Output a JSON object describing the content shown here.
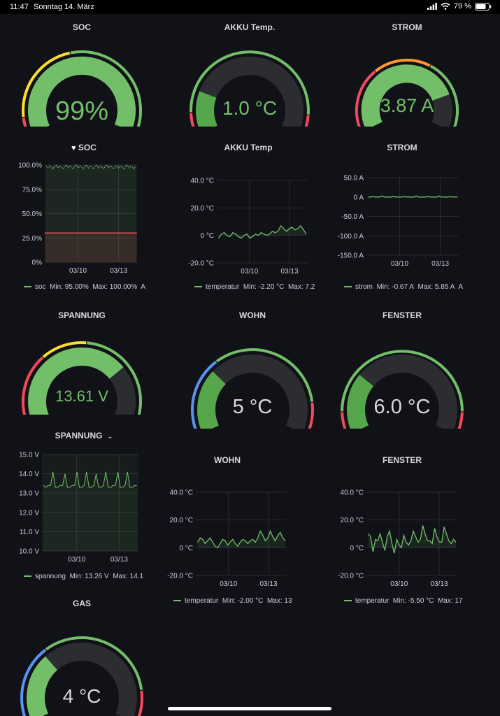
{
  "status_bar": {
    "time": "11:47",
    "date": "Sonntag 14. März",
    "battery": "79 %"
  },
  "colors": {
    "green": "#73bf69",
    "dark_green": "#56a64b",
    "yellow": "#fade2a",
    "orange": "#ff9830",
    "red": "#f2495c",
    "blue": "#5794f2",
    "track": "#2c2d31"
  },
  "gauges": {
    "soc": {
      "title": "SOC",
      "value": "99%",
      "level": 0.99
    },
    "akku": {
      "title": "AKKU Temp.",
      "value": "1.0 °C"
    },
    "strom": {
      "title": "STROM",
      "value": "3.87 A"
    },
    "spannung": {
      "title": "SPANNUNG",
      "value": "13.61 V"
    },
    "wohn": {
      "title": "WOHN",
      "value": "5 °C"
    },
    "fenster": {
      "title": "FENSTER",
      "value": "6.0 °C"
    },
    "gas": {
      "title": "GAS",
      "value": "4 °C"
    }
  },
  "graphs": {
    "soc": {
      "title": "SOC",
      "legend": {
        "series": "soc",
        "min": "Min: 95.00%",
        "max": "Max: 100.00%",
        "extra": "A"
      }
    },
    "akku": {
      "title": "AKKU Temp",
      "legend": {
        "series": "temperatur",
        "min": "Min: -2.20 °C",
        "max": "Max: 7.2"
      }
    },
    "strom": {
      "title": "STROM",
      "legend": {
        "series": "strom",
        "min": "Min: -0.67 A",
        "max": "Max: 5.85 A",
        "extra": "A"
      }
    },
    "spannung": {
      "title": "SPANNUNG",
      "legend": {
        "series": "spannung",
        "min": "Min: 13.26 V",
        "max": "Max: 14.1"
      }
    },
    "wohn": {
      "title": "WOHN",
      "legend": {
        "series": "temperatur",
        "min": "Min: -2.00 °C",
        "max": "Max: 13"
      }
    },
    "fenster": {
      "title": "FENSTER",
      "legend": {
        "series": "temperatur",
        "min": "Min: -5.50 °C",
        "max": "Max: 17"
      }
    }
  },
  "chart_data": [
    {
      "id": "soc",
      "type": "area",
      "title": "SOC",
      "ylim": [
        0,
        100
      ],
      "yticks": [
        "100.0%",
        "75.0%",
        "50.0%",
        "25.0%",
        "0%"
      ],
      "xticks": [
        "03/10",
        "03/13"
      ],
      "threshold": 30,
      "series": [
        {
          "name": "soc",
          "values": [
            99,
            97,
            99,
            98,
            96,
            99,
            100,
            97,
            99,
            98,
            96,
            99,
            100,
            97,
            99,
            98,
            96,
            99,
            100,
            97,
            99,
            98,
            96,
            99,
            100,
            97,
            99,
            98,
            96,
            99,
            100,
            97,
            99,
            98,
            96,
            99,
            100,
            97,
            99,
            98,
            96,
            99,
            99,
            97,
            99,
            98,
            96,
            99,
            100,
            97,
            99,
            98,
            96,
            99
          ]
        }
      ]
    },
    {
      "id": "akku",
      "type": "area",
      "title": "AKKU Temp",
      "ylim": [
        -20,
        40
      ],
      "yticks": [
        "40.0 °C",
        "20.0 °C",
        "0 °C",
        "-20.0 °C"
      ],
      "xticks": [
        "03/10",
        "03/13"
      ],
      "series": [
        {
          "name": "temperatur",
          "values": [
            -2,
            1,
            2,
            0,
            -1,
            2,
            1,
            -1,
            -2,
            0,
            1,
            -2,
            -1,
            1,
            0,
            2,
            1,
            0,
            1,
            3,
            2,
            3,
            7,
            5,
            3,
            5,
            6,
            4,
            5,
            7,
            4,
            1
          ]
        }
      ]
    },
    {
      "id": "strom",
      "type": "line",
      "title": "STROM",
      "ylim": [
        -150,
        50
      ],
      "yticks": [
        "50.0 A",
        "0 A",
        "-50.0 A",
        "-100.0 A",
        "-150.0 A"
      ],
      "xticks": [
        "03/10",
        "03/13"
      ],
      "series": [
        {
          "name": "strom",
          "values": [
            0,
            0,
            1,
            0,
            0,
            0,
            3,
            0,
            0,
            0,
            0,
            2,
            0,
            0,
            0,
            0,
            1,
            0,
            0,
            0,
            0,
            3,
            0,
            0,
            0,
            0,
            2,
            0,
            0,
            0,
            0,
            3,
            0,
            0,
            0,
            0,
            1,
            0,
            0,
            0
          ]
        }
      ]
    },
    {
      "id": "spannung",
      "type": "area",
      "title": "SPANNUNG",
      "ylim": [
        10,
        15
      ],
      "yticks": [
        "15.0 V",
        "14.0 V",
        "13.0 V",
        "12.0 V",
        "11.0 V",
        "10.0 V"
      ],
      "xticks": [
        "03/10",
        "03/13"
      ],
      "series": [
        {
          "name": "spannung",
          "values": [
            13.4,
            13.3,
            13.4,
            13.4,
            14.1,
            13.3,
            13.3,
            13.4,
            13.4,
            14.0,
            13.3,
            13.3,
            13.4,
            13.4,
            14.1,
            13.3,
            13.3,
            13.4,
            14.1,
            13.3,
            13.3,
            13.4,
            14.0,
            13.3,
            13.3,
            13.4,
            14.1,
            13.3,
            13.3,
            13.4,
            13.4,
            14.1,
            13.3,
            13.3,
            13.4,
            14.1,
            13.3,
            13.3,
            13.4,
            13.4
          ]
        }
      ]
    },
    {
      "id": "wohn",
      "type": "area",
      "title": "WOHN",
      "ylim": [
        -20,
        40
      ],
      "yticks": [
        "40.0 °C",
        "20.0 °C",
        "0 °C",
        "-20.0 °C"
      ],
      "xticks": [
        "03/10",
        "03/13"
      ],
      "series": [
        {
          "name": "temperatur",
          "values": [
            4,
            7,
            6,
            3,
            5,
            7,
            4,
            1,
            0,
            3,
            6,
            5,
            2,
            4,
            6,
            3,
            1,
            4,
            6,
            5,
            3,
            5,
            6,
            4,
            7,
            12,
            9,
            5,
            7,
            12,
            8,
            5,
            9,
            11,
            7,
            5
          ]
        }
      ]
    },
    {
      "id": "fenster",
      "type": "area",
      "title": "FENSTER",
      "ylim": [
        -20,
        40
      ],
      "yticks": [
        "40.0 °C",
        "20.0 °C",
        "0 °C",
        "-20.0 °C"
      ],
      "xticks": [
        "03/10",
        "03/13"
      ],
      "series": [
        {
          "name": "temperatur",
          "values": [
            10,
            8,
            -3,
            6,
            5,
            10,
            4,
            -2,
            8,
            12,
            3,
            -4,
            6,
            2,
            0,
            9,
            4,
            2,
            5,
            12,
            8,
            4,
            6,
            16,
            10,
            5,
            5,
            3,
            14,
            8,
            4,
            4,
            15,
            10,
            5,
            3,
            6,
            4
          ]
        }
      ]
    }
  ]
}
